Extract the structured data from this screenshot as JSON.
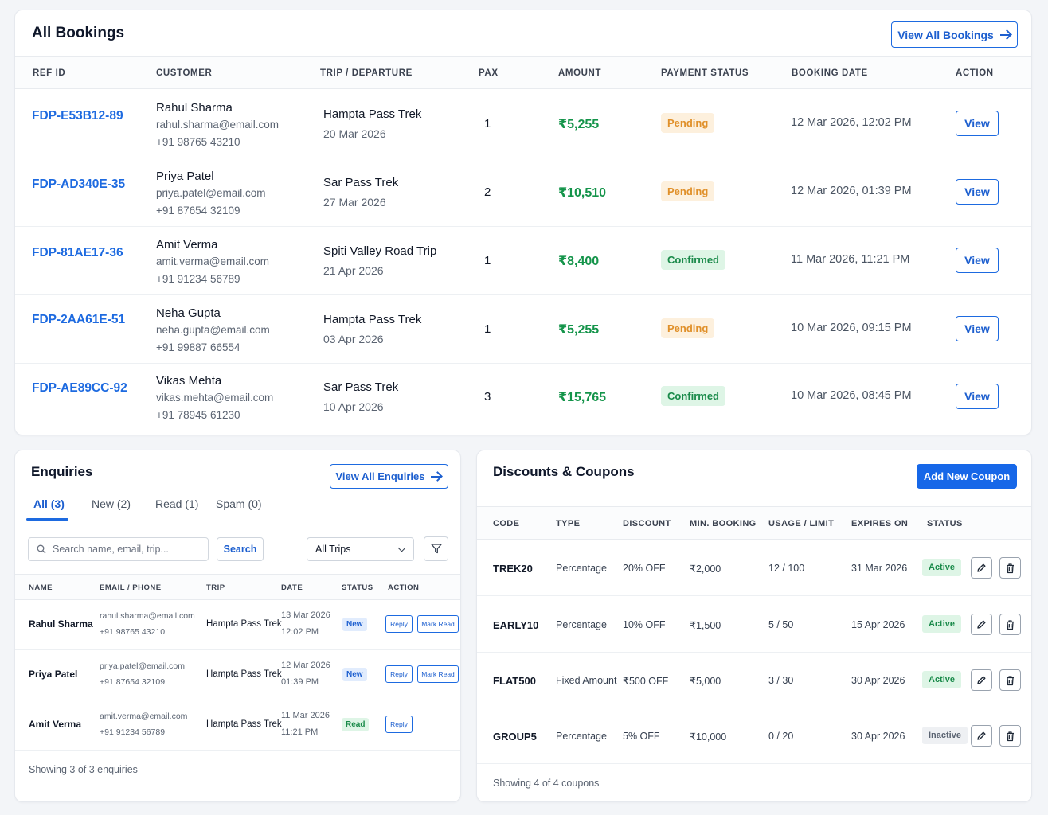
{
  "bookings": {
    "title": "All Bookings",
    "view_all_label": "View All Bookings",
    "columns": [
      "REF ID",
      "CUSTOMER",
      "TRIP / DEPARTURE",
      "PAX",
      "AMOUNT",
      "PAYMENT STATUS",
      "BOOKING DATE",
      "ACTION"
    ],
    "rows": [
      {
        "ref": "FDP-E53B12-89",
        "name": "Rahul Sharma",
        "email": "rahul.sharma@email.com",
        "phone": "+91 98765 43210",
        "trip": "Hampta Pass Trek",
        "departure": "20 Mar 2026",
        "pax": "1",
        "amount": "₹5,255",
        "status": "Pending",
        "booking_date": "12 Mar 2026, 12:02 PM",
        "action": "View"
      },
      {
        "ref": "FDP-AD340E-35",
        "name": "Priya Patel",
        "email": "priya.patel@email.com",
        "phone": "+91 87654 32109",
        "trip": "Sar Pass Trek",
        "departure": "27 Mar 2026",
        "pax": "2",
        "amount": "₹10,510",
        "status": "Pending",
        "booking_date": "12 Mar 2026, 01:39 PM",
        "action": "View"
      },
      {
        "ref": "FDP-81AE17-36",
        "name": "Amit Verma",
        "email": "amit.verma@email.com",
        "phone": "+91 91234 56789",
        "trip": "Spiti Valley Road Trip",
        "departure": "21 Apr 2026",
        "pax": "1",
        "amount": "₹8,400",
        "status": "Confirmed",
        "booking_date": "11 Mar 2026, 11:21 PM",
        "action": "View"
      },
      {
        "ref": "FDP-2AA61E-51",
        "name": "Neha Gupta",
        "email": "neha.gupta@email.com",
        "phone": "+91 99887 66554",
        "trip": "Hampta Pass Trek",
        "departure": "03 Apr 2026",
        "pax": "1",
        "amount": "₹5,255",
        "status": "Pending",
        "booking_date": "10 Mar 2026, 09:15 PM",
        "action": "View"
      },
      {
        "ref": "FDP-AE89CC-92",
        "name": "Vikas Mehta",
        "email": "vikas.mehta@email.com",
        "phone": "+91 78945 61230",
        "trip": "Sar Pass Trek",
        "departure": "10 Apr 2026",
        "pax": "3",
        "amount": "₹15,765",
        "status": "Confirmed",
        "booking_date": "10 Mar 2026, 08:45 PM",
        "action": "View"
      }
    ]
  },
  "enquiries": {
    "title": "Enquiries",
    "view_all_label": "View All Enquiries",
    "tabs": [
      "All (3)",
      "New (2)",
      "Read (1)",
      "Spam (0)"
    ],
    "search_placeholder": "Search name, email, trip...",
    "search_label": "Search",
    "trip_filter": "All Trips",
    "columns": [
      "NAME",
      "EMAIL / PHONE",
      "TRIP",
      "DATE",
      "STATUS",
      "ACTION"
    ],
    "rows": [
      {
        "name": "Rahul Sharma",
        "email": "rahul.sharma@email.com",
        "phone": "+91 98765 43210",
        "trip": "Hampta Pass Trek",
        "date": "13 Mar 2026",
        "time": "12:02 PM",
        "status": "New",
        "reply": "Reply",
        "mark_read": "Mark Read"
      },
      {
        "name": "Priya Patel",
        "email": "priya.patel@email.com",
        "phone": "+91 87654 32109",
        "trip": "Hampta Pass Trek",
        "date": "12 Mar 2026",
        "time": "01:39 PM",
        "status": "New",
        "reply": "Reply",
        "mark_read": "Mark Read"
      },
      {
        "name": "Amit Verma",
        "email": "amit.verma@email.com",
        "phone": "+91 91234 56789",
        "trip": "Hampta Pass Trek",
        "date": "11 Mar 2026",
        "time": "11:21 PM",
        "status": "Read",
        "reply": "Reply"
      }
    ],
    "footer": "Showing 3 of 3 enquiries"
  },
  "coupons": {
    "title": "Discounts & Coupons",
    "add_label": "Add New Coupon",
    "columns": [
      "CODE",
      "TYPE",
      "DISCOUNT",
      "MIN. BOOKING",
      "USAGE / LIMIT",
      "EXPIRES ON",
      "STATUS"
    ],
    "rows": [
      {
        "code": "TREK20",
        "type": "Percentage",
        "discount": "20% OFF",
        "min": "₹2,000",
        "usage": "12 / 100",
        "expires": "31 Mar 2026",
        "status": "Active"
      },
      {
        "code": "EARLY10",
        "type": "Percentage",
        "discount": "10% OFF",
        "min": "₹1,500",
        "usage": "5 / 50",
        "expires": "15 Apr 2026",
        "status": "Active"
      },
      {
        "code": "FLAT500",
        "type": "Fixed Amount",
        "discount": "₹500 OFF",
        "min": "₹5,000",
        "usage": "3 / 30",
        "expires": "30 Apr 2026",
        "status": "Active"
      },
      {
        "code": "GROUP5",
        "type": "Percentage",
        "discount": "5% OFF",
        "min": "₹10,000",
        "usage": "0 / 20",
        "expires": "30 Apr 2026",
        "status": "Inactive"
      }
    ],
    "footer": "Showing 4 of 4 coupons"
  },
  "colors": {
    "accent": "#1d6ae0",
    "amount_green": "#14944a",
    "pending": "#e0902a",
    "confirmed": "#1a8a4a"
  }
}
